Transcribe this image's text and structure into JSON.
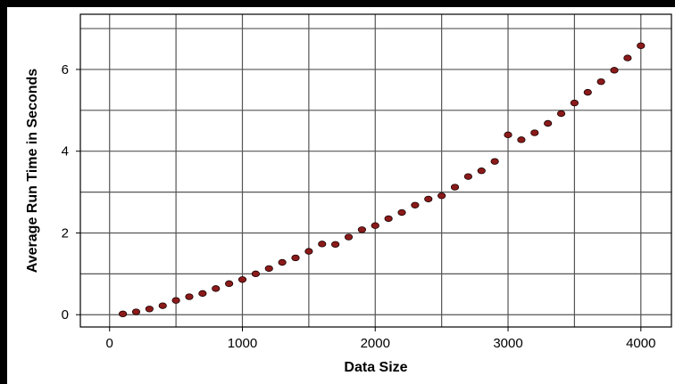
{
  "chart_data": {
    "type": "scatter",
    "title": "",
    "xlabel": "Data Size",
    "ylabel": "Average Run Time in Seconds",
    "xlim": [
      -220,
      4230
    ],
    "ylim": [
      -0.3,
      7.35
    ],
    "x_ticks": [
      0,
      1000,
      2000,
      3000,
      4000
    ],
    "x_tick_labels": [
      "0",
      "1000",
      "2000",
      "3000",
      "4000"
    ],
    "y_ticks": [
      0,
      2,
      4,
      6
    ],
    "y_tick_labels": [
      "0",
      "2",
      "4",
      "6"
    ],
    "x_grid": [
      0,
      500,
      1000,
      1500,
      2000,
      2500,
      3000,
      3500,
      4000
    ],
    "y_grid": [
      0,
      1,
      2,
      3,
      4,
      5,
      6,
      7
    ],
    "grid": true,
    "legend": "none",
    "marker_color": "#8b1a1a",
    "series": [
      {
        "x": [
          100,
          200,
          300,
          400,
          500,
          600,
          700,
          800,
          900,
          1000,
          1100,
          1200,
          1300,
          1400,
          1500,
          1600,
          1700,
          1800,
          1900,
          2000,
          2100,
          2200,
          2300,
          2400,
          2500,
          2600,
          2700,
          2800,
          2900,
          3000,
          3100,
          3200,
          3300,
          3400,
          3500,
          3600,
          3700,
          3800,
          3900,
          4000
        ],
        "y": [
          0.02,
          0.07,
          0.14,
          0.22,
          0.35,
          0.44,
          0.52,
          0.64,
          0.76,
          0.86,
          1.0,
          1.13,
          1.28,
          1.39,
          1.55,
          1.73,
          1.72,
          1.9,
          2.08,
          2.18,
          2.35,
          2.5,
          2.68,
          2.83,
          2.91,
          3.12,
          3.38,
          3.52,
          3.75,
          4.4,
          4.28,
          4.45,
          4.68,
          4.92,
          5.18,
          5.44,
          5.7,
          5.98,
          6.28,
          6.58
        ]
      }
    ]
  }
}
